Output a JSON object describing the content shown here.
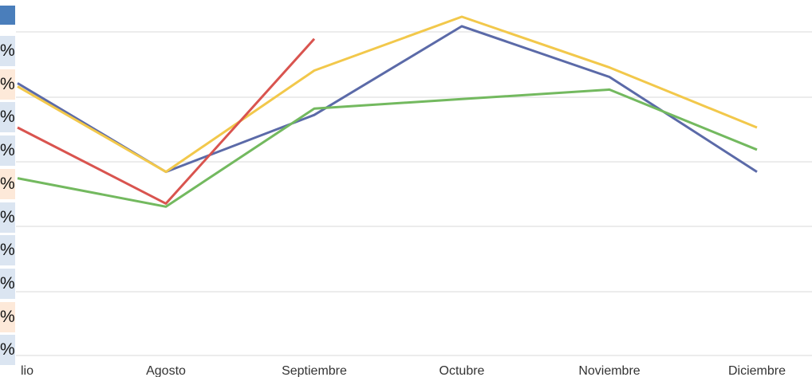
{
  "sheet_strip": {
    "cells": [
      {
        "text": "%",
        "bg": "#dbe5f1"
      },
      {
        "text": "%",
        "bg": "#fde9d9"
      },
      {
        "text": "%",
        "bg": "#dbe5f1"
      },
      {
        "text": "%",
        "bg": "#dbe5f1"
      },
      {
        "text": "%",
        "bg": "#fde9d9"
      },
      {
        "text": "%",
        "bg": "#dbe5f1"
      },
      {
        "text": "%",
        "bg": "#dbe5f1"
      },
      {
        "text": "%",
        "bg": "#dbe5f1"
      },
      {
        "text": "%",
        "bg": "#fde9d9"
      },
      {
        "text": "%",
        "bg": "#dbe5f1"
      }
    ]
  },
  "chart_data": {
    "type": "line",
    "categories": [
      "lio",
      "Agosto",
      "Septiembre",
      "Octubre",
      "Noviembre",
      "Diciembre"
    ],
    "ylim": [
      0,
      5.3
    ],
    "grid": true,
    "legend": "none",
    "series": [
      {
        "color": "#5b6aa8",
        "values": [
          4.3,
          2.9,
          3.8,
          5.2,
          4.4,
          2.9
        ]
      },
      {
        "color": "#f2c84b",
        "values": [
          4.25,
          2.9,
          4.5,
          5.35,
          4.55,
          3.6
        ]
      },
      {
        "color": "#d9544f",
        "values": [
          3.6,
          2.4,
          5.0,
          null,
          null,
          null
        ]
      },
      {
        "color": "#73b95f",
        "values": [
          2.8,
          2.35,
          3.9,
          4.05,
          4.2,
          3.25
        ]
      }
    ]
  }
}
